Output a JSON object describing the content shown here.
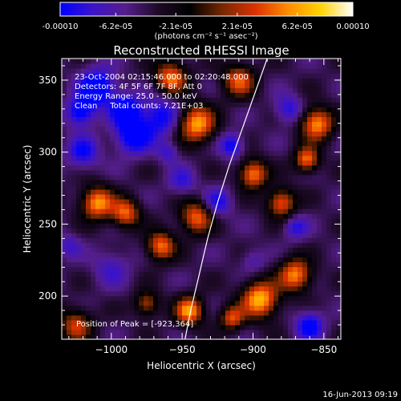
{
  "colorbar": {
    "ticks": [
      "-0.00010",
      "-6.2e-05",
      "-2.1e-05",
      "2.1e-05",
      "6.2e-05",
      "0.00010"
    ],
    "tick_values": [
      -0.0001,
      -6.2e-05,
      -2.1e-05,
      2.1e-05,
      6.2e-05,
      0.0001
    ],
    "range": [
      -0.0001,
      0.0001
    ],
    "units_label": "(photons cm⁻² s⁻¹ asec⁻²)",
    "colors": [
      "#0000ff",
      "#3c14c8",
      "#551e8c",
      "#1e0a28",
      "#000000",
      "#782800",
      "#dc3200",
      "#ff8c00",
      "#ffd200",
      "#ffffff"
    ]
  },
  "chart_data": {
    "type": "heatmap",
    "title": "Reconstructed RHESSI Image",
    "xlabel": "Heliocentric X (arcsec)",
    "ylabel": "Heliocentric Y (arcsec)",
    "xlim": [
      -1035,
      -838
    ],
    "ylim": [
      170,
      365
    ],
    "x_ticks": [
      -1000,
      -950,
      -900,
      -850
    ],
    "x_tick_labels": [
      "−1000",
      "−950",
      "−900",
      "−850"
    ],
    "y_ticks": [
      200,
      250,
      300,
      350
    ],
    "y_tick_labels": [
      "200",
      "250",
      "300",
      "350"
    ],
    "annotations": [
      "23-Oct-2004 02:15:46.000 to 02:20:48.000",
      "Detectors: 4F 5F 6F 7F 8F, Att 0",
      "Energy Range: 25.0 - 50.0 keV",
      "Clean     Total counts: 7.21E+03"
    ],
    "peak_label": "Position of Peak = [-923,364]",
    "peak_position": [
      -923,
      364
    ],
    "limb_curve": [
      [
        -948,
        170
      ],
      [
        -944,
        190
      ],
      [
        -938,
        215
      ],
      [
        -932,
        240
      ],
      [
        -925,
        265
      ],
      [
        -917,
        290
      ],
      [
        -908,
        315
      ],
      [
        -899,
        340
      ],
      [
        -890,
        365
      ]
    ],
    "limb_color": "#ffffff",
    "blobs": [
      {
        "x": -1010,
        "y": 345,
        "r": 9,
        "v": -1.0
      },
      {
        "x": -990,
        "y": 330,
        "r": 7,
        "v": -0.95
      },
      {
        "x": -1022,
        "y": 328,
        "r": 7,
        "v": -0.85
      },
      {
        "x": -985,
        "y": 312,
        "r": 9,
        "v": -0.9
      },
      {
        "x": -965,
        "y": 325,
        "r": 10,
        "v": -0.75
      },
      {
        "x": -1020,
        "y": 300,
        "r": 8,
        "v": -0.7
      },
      {
        "x": -940,
        "y": 320,
        "r": 9,
        "v": 0.9
      },
      {
        "x": -958,
        "y": 352,
        "r": 8,
        "v": 0.75
      },
      {
        "x": -1010,
        "y": 265,
        "r": 8,
        "v": 0.85
      },
      {
        "x": -990,
        "y": 258,
        "r": 7,
        "v": 0.7
      },
      {
        "x": -965,
        "y": 235,
        "r": 7,
        "v": 0.75
      },
      {
        "x": -940,
        "y": 255,
        "r": 8,
        "v": 0.7
      },
      {
        "x": -945,
        "y": 190,
        "r": 7,
        "v": 0.85
      },
      {
        "x": -895,
        "y": 198,
        "r": 9,
        "v": 0.95
      },
      {
        "x": -870,
        "y": 215,
        "r": 8,
        "v": 0.8
      },
      {
        "x": -855,
        "y": 320,
        "r": 8,
        "v": 0.85
      },
      {
        "x": -862,
        "y": 295,
        "r": 6,
        "v": 0.75
      },
      {
        "x": -900,
        "y": 285,
        "r": 7,
        "v": 0.8
      },
      {
        "x": -880,
        "y": 265,
        "r": 7,
        "v": 0.7
      },
      {
        "x": -910,
        "y": 350,
        "r": 8,
        "v": 0.65
      },
      {
        "x": -1025,
        "y": 180,
        "r": 8,
        "v": 0.55
      },
      {
        "x": -975,
        "y": 195,
        "r": 6,
        "v": 0.5
      },
      {
        "x": -915,
        "y": 305,
        "r": 6,
        "v": -0.75
      },
      {
        "x": -925,
        "y": 265,
        "r": 7,
        "v": -0.65
      },
      {
        "x": -870,
        "y": 248,
        "r": 6,
        "v": -0.6
      },
      {
        "x": -875,
        "y": 330,
        "r": 7,
        "v": -0.65
      },
      {
        "x": -1000,
        "y": 220,
        "r": 9,
        "v": -0.5
      },
      {
        "x": -950,
        "y": 280,
        "r": 7,
        "v": -0.55
      },
      {
        "x": -860,
        "y": 180,
        "r": 7,
        "v": -0.8
      },
      {
        "x": -900,
        "y": 225,
        "r": 6,
        "v": -0.45
      },
      {
        "x": -915,
        "y": 185,
        "r": 6,
        "v": 0.6
      },
      {
        "x": -1030,
        "y": 235,
        "r": 6,
        "v": -0.5
      },
      {
        "x": -960,
        "y": 300,
        "r": 5,
        "v": -0.55
      }
    ],
    "background_value": -0.42,
    "grid": false
  },
  "footer": {
    "timestamp": "16-Jun-2013 09:19"
  }
}
